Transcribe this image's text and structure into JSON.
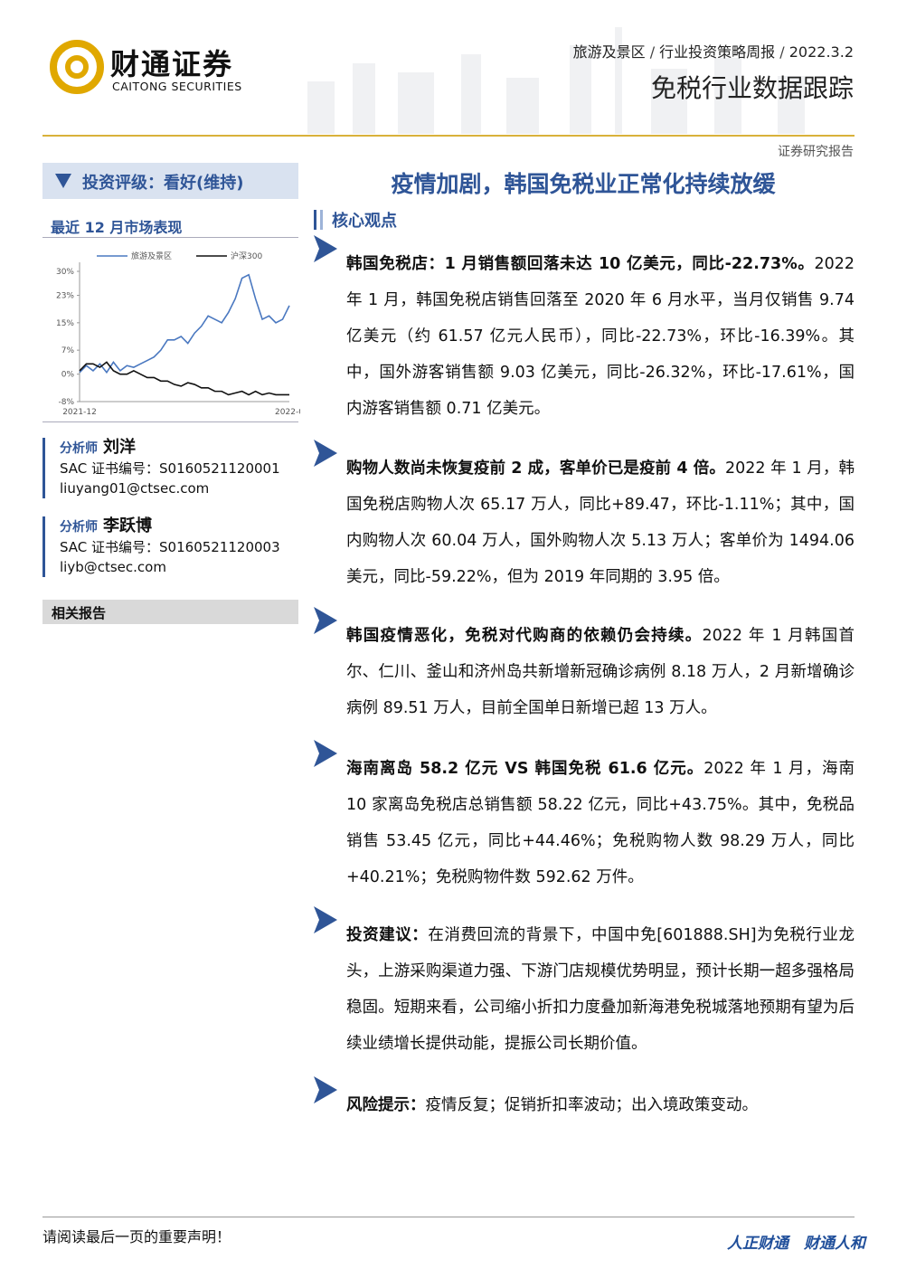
{
  "header": {
    "logo_cn": "财通证券",
    "logo_en": "CAITONG SECURITIES",
    "breadcrumb": [
      "旅游及景区",
      "行业投资策略周报",
      "2022.3.2"
    ],
    "subtitle": "免税行业数据跟踪",
    "report_type": "证券研究报告"
  },
  "sidebar": {
    "rating": "投资评级：看好(维持)",
    "performance_title": "最近 12 月市场表现",
    "analysts": [
      {
        "label": "分析师",
        "name": "刘洋",
        "sac": "SAC 证书编号：S0160521120001",
        "email": "liuyang01@ctsec.com"
      },
      {
        "label": "分析师",
        "name": "李跃博",
        "sac": "SAC 证书编号：S0160521120003",
        "email": "liyb@ctsec.com"
      }
    ],
    "related": "相关报告"
  },
  "chart_data": {
    "type": "line",
    "categories": [
      "2021-12",
      null,
      null,
      null,
      null,
      null,
      null,
      null,
      null,
      null,
      null,
      null,
      null,
      null,
      null,
      null,
      null,
      null,
      null,
      null,
      null,
      null,
      null,
      null,
      null,
      null,
      null,
      null,
      null,
      null,
      null,
      "2022-0"
    ],
    "series": [
      {
        "name": "旅游及景区",
        "color": "#4a78c0",
        "values": [
          0.5,
          2.5,
          1,
          3,
          0.5,
          3.5,
          1,
          2.5,
          2,
          3,
          4,
          5,
          7,
          10,
          10,
          11,
          9,
          12,
          14,
          17,
          16,
          15,
          18,
          22,
          28,
          29,
          22,
          16,
          17,
          15,
          16,
          20
        ]
      },
      {
        "name": "沪深300",
        "color": "#111111",
        "values": [
          1,
          3,
          3,
          2,
          3.5,
          1,
          0,
          0,
          1,
          0,
          -1,
          -1,
          -2,
          -2,
          -3,
          -3.5,
          -2.5,
          -3,
          -4,
          -4,
          -5,
          -5,
          -6,
          -5.5,
          -5,
          -6,
          -5,
          -6,
          -5.5,
          -6,
          -6,
          -6
        ]
      }
    ],
    "ylim": [
      -8,
      30
    ],
    "yticks": [
      {
        "value": 30,
        "label": "30%"
      },
      {
        "value": 23,
        "label": "23%"
      },
      {
        "value": 15,
        "label": "15%"
      },
      {
        "value": 7,
        "label": "7%"
      },
      {
        "value": 0,
        "label": "0%"
      },
      {
        "value": -8,
        "label": "-8%"
      }
    ]
  },
  "main": {
    "title": "疫情加剧，韩国免税业正常化持续放缓",
    "section": "核心观点",
    "points": [
      {
        "lead": "韩国免税店：1 月销售额回落未达 10 亿美元，同比-22.73%。",
        "body": "2022 年 1 月，韩国免税店销售回落至 2020 年 6 月水平，当月仅销售 9.74 亿美元（约 61.57 亿元人民币），同比-22.73%，环比-16.39%。其中，国外游客销售额 9.03 亿美元，同比-26.32%，环比-17.61%，国内游客销售额 0.71 亿美元。"
      },
      {
        "lead": "购物人数尚未恢复疫前 2 成，客单价已是疫前 4 倍。",
        "body": "2022 年 1 月，韩国免税店购物人次 65.17 万人，同比+89.47，环比-1.11%；其中，国内购物人次 60.04 万人，国外购物人次 5.13 万人；客单价为 1494.06 美元，同比-59.22%，但为 2019 年同期的 3.95 倍。"
      },
      {
        "lead": "韩国疫情恶化，免税对代购商的依赖仍会持续。",
        "body": "2022 年 1 月韩国首尔、仁川、釜山和济州岛共新增新冠确诊病例 8.18 万人，2 月新增确诊病例 89.51 万人，目前全国单日新增已超 13 万人。"
      },
      {
        "lead": "海南离岛 58.2 亿元 VS 韩国免税 61.6 亿元。",
        "body": "2022 年 1 月，海南 10 家离岛免税店总销售额 58.22 亿元，同比+43.75%。其中，免税品销售 53.45 亿元，同比+44.46%；免税购物人数 98.29 万人，同比+40.21%；免税购物件数 592.62 万件。"
      },
      {
        "lead": "投资建议：",
        "body": "在消费回流的背景下，中国中免[601888.SH]为免税行业龙头，上游采购渠道力强、下游门店规模优势明显，预计长期一超多强格局稳固。短期来看，公司缩小折扣力度叠加新海港免税城落地预期有望为后续业绩增长提供动能，提振公司长期价值。"
      },
      {
        "lead": "风险提示：",
        "body": "疫情反复；促销折扣率波动；出入境政策变动。"
      }
    ]
  },
  "footer": {
    "disclaimer": "请阅读最后一页的重要声明！",
    "slogan": "人正财通　财通人和"
  }
}
